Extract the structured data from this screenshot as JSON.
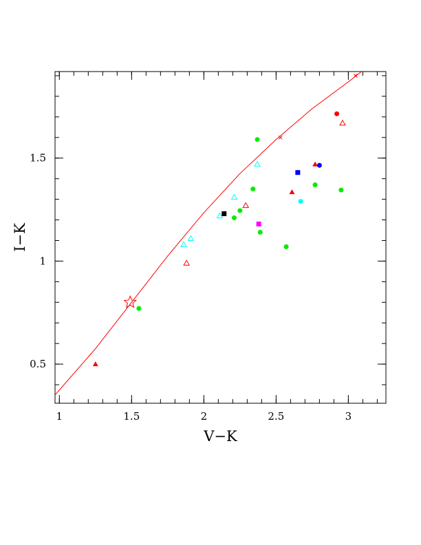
{
  "chart_data": {
    "type": "scatter",
    "xlabel": "V−K",
    "ylabel": "I−K",
    "xlim": [
      0.97,
      3.26
    ],
    "ylim": [
      0.31,
      1.92
    ],
    "x_ticks": [
      {
        "value": 1,
        "label": "1"
      },
      {
        "value": 1.5,
        "label": "1.5"
      },
      {
        "value": 2,
        "label": "2"
      },
      {
        "value": 2.5,
        "label": "2.5"
      },
      {
        "value": 3,
        "label": "3"
      }
    ],
    "y_ticks": [
      {
        "value": 0.5,
        "label": "0.5"
      },
      {
        "value": 1,
        "label": "1"
      },
      {
        "value": 1.5,
        "label": "1.5"
      }
    ],
    "x_minor_step": 0.1,
    "y_minor_step": 0.1,
    "grid": false,
    "colors": {
      "red": "#ff0000",
      "green": "#00ee00",
      "cyan": "#00ffff",
      "blue": "#0000ff",
      "magenta": "#ff00ff",
      "black": "#000000"
    },
    "curve": {
      "color": "#ff0000",
      "points": [
        [
          0.97,
          0.35
        ],
        [
          1.25,
          0.575
        ],
        [
          1.5,
          0.8
        ],
        [
          1.75,
          1.025
        ],
        [
          2.0,
          1.235
        ],
        [
          2.25,
          1.425
        ],
        [
          2.5,
          1.59
        ],
        [
          2.75,
          1.74
        ],
        [
          3.0,
          1.87
        ],
        [
          3.1,
          1.925
        ]
      ]
    },
    "curve_markers": [
      {
        "x": 2.53,
        "y": 1.6,
        "symbol": "x"
      },
      {
        "x": 3.05,
        "y": 1.9,
        "symbol": "x"
      }
    ],
    "reference_star": {
      "x": 1.49,
      "y": 0.8,
      "color": "#ff0000"
    },
    "series": [
      {
        "symbol": "circle",
        "color": "#00ee00",
        "points": [
          [
            1.55,
            0.77
          ],
          [
            2.21,
            1.21
          ],
          [
            2.25,
            1.245
          ],
          [
            2.34,
            1.35
          ],
          [
            2.37,
            1.59
          ],
          [
            2.39,
            1.14
          ],
          [
            2.57,
            1.07
          ],
          [
            2.77,
            1.37
          ],
          [
            2.95,
            1.345
          ]
        ]
      },
      {
        "symbol": "triangle-filled",
        "color": "#ff0000",
        "points": [
          [
            1.25,
            0.5
          ],
          [
            2.61,
            1.335
          ],
          [
            2.77,
            1.47
          ]
        ]
      },
      {
        "symbol": "triangle-open",
        "color": "#ff0000",
        "points": [
          [
            1.88,
            0.99
          ],
          [
            2.29,
            1.27
          ],
          [
            2.96,
            1.67
          ]
        ]
      },
      {
        "symbol": "triangle-open",
        "color": "#00ffff",
        "points": [
          [
            1.86,
            1.08
          ],
          [
            1.91,
            1.11
          ],
          [
            2.11,
            1.22
          ],
          [
            2.21,
            1.31
          ],
          [
            2.37,
            1.47
          ]
        ]
      },
      {
        "symbol": "square",
        "color": "#000000",
        "points": [
          [
            2.14,
            1.23
          ]
        ]
      },
      {
        "symbol": "square",
        "color": "#ff00ff",
        "points": [
          [
            2.38,
            1.18
          ]
        ]
      },
      {
        "symbol": "square",
        "color": "#0000ff",
        "points": [
          [
            2.65,
            1.43
          ]
        ]
      },
      {
        "symbol": "circle",
        "color": "#0000ff",
        "points": [
          [
            2.8,
            1.465
          ]
        ]
      },
      {
        "symbol": "circle",
        "color": "#00ffff",
        "points": [
          [
            2.67,
            1.29
          ]
        ]
      },
      {
        "symbol": "circle",
        "color": "#ff0000",
        "points": [
          [
            2.92,
            1.715
          ]
        ]
      }
    ]
  }
}
